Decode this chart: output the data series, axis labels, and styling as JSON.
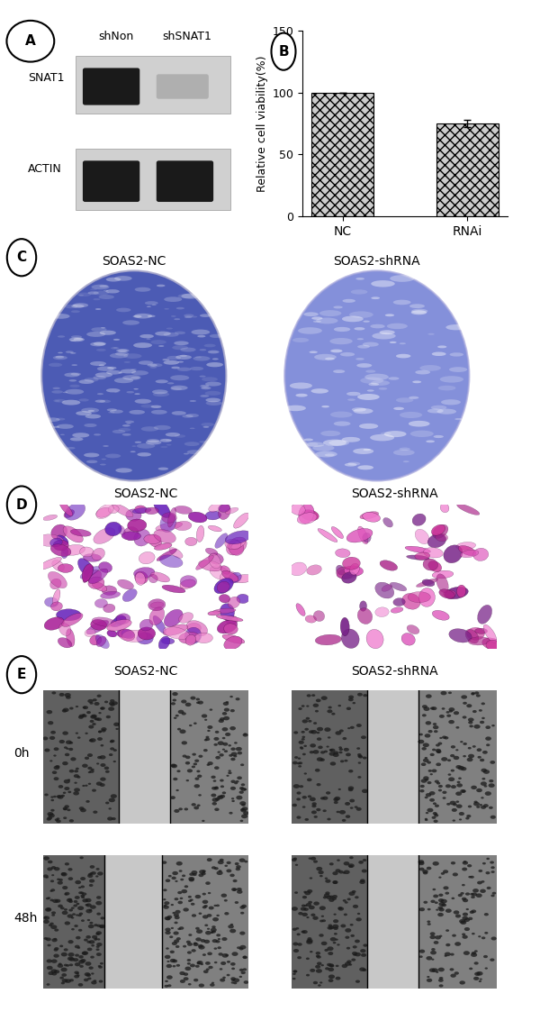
{
  "fig_width": 6.0,
  "fig_height": 11.43,
  "fig_dpi": 100,
  "background_color": "#ffffff",
  "panel_labels": [
    "A",
    "B",
    "C",
    "D",
    "E"
  ],
  "panel_label_fontsize": 13,
  "panel_label_fontweight": "bold",
  "bar_categories": [
    "NC",
    "RNAi"
  ],
  "bar_values": [
    100,
    75
  ],
  "bar_error": [
    0,
    3
  ],
  "bar_ylim": [
    0,
    150
  ],
  "bar_yticks": [
    0,
    50,
    100,
    150
  ],
  "bar_ylabel": "Relative cell viability(%)",
  "bar_ylabel_fontsize": 9,
  "bar_hatch": [
    "xxx",
    "xxx"
  ],
  "bar_color": "#cccccc",
  "bar_edgecolor": "#000000",
  "bar_width": 0.5,
  "bar_tick_fontsize": 10,
  "bar_xlabel_fontsize": 10,
  "panel_A_label_left": "shNon",
  "panel_A_label_right": "shSNAT1",
  "panel_A_row1_label": "SNAT1",
  "panel_A_row2_label": "ACTIN",
  "panel_C_label_left": "SOAS2-NC",
  "panel_C_label_right": "SOAS2-shRNA",
  "panel_D_label_left": "SOAS2-NC",
  "panel_D_label_right": "SOAS2-shRNA",
  "panel_E_label_left": "SOAS2-NC",
  "panel_E_label_right": "SOAS2-shRNA",
  "panel_E_time_0h": "0h",
  "panel_E_time_48h": "48h",
  "text_fontsize": 10,
  "text_color": "#000000"
}
